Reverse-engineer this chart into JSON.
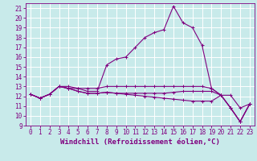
{
  "xlabel": "Windchill (Refroidissement éolien,°C)",
  "background_color": "#c8eaea",
  "grid_color": "#ffffff",
  "line_color": "#800080",
  "xlim": [
    -0.5,
    23.5
  ],
  "ylim": [
    9,
    21.5
  ],
  "xticks": [
    0,
    1,
    2,
    3,
    4,
    5,
    6,
    7,
    8,
    9,
    10,
    11,
    12,
    13,
    14,
    15,
    16,
    17,
    18,
    19,
    20,
    21,
    22,
    23
  ],
  "yticks": [
    9,
    10,
    11,
    12,
    13,
    14,
    15,
    16,
    17,
    18,
    19,
    20,
    21
  ],
  "series": [
    [
      12.2,
      11.8,
      12.2,
      13.0,
      12.8,
      12.8,
      12.5,
      12.5,
      15.2,
      15.8,
      16.0,
      17.0,
      18.0,
      18.5,
      18.8,
      21.2,
      19.5,
      19.0,
      17.2,
      12.8,
      12.1,
      10.8,
      9.4,
      11.2
    ],
    [
      12.2,
      11.8,
      12.2,
      13.0,
      13.0,
      12.8,
      12.8,
      12.8,
      13.0,
      13.0,
      13.0,
      13.0,
      13.0,
      13.0,
      13.0,
      13.0,
      13.0,
      13.0,
      13.0,
      12.8,
      12.1,
      12.1,
      10.8,
      11.2
    ],
    [
      12.2,
      11.8,
      12.2,
      13.0,
      12.8,
      12.5,
      12.3,
      12.3,
      12.4,
      12.3,
      12.3,
      12.3,
      12.3,
      12.3,
      12.3,
      12.4,
      12.5,
      12.5,
      12.5,
      12.5,
      12.1,
      10.8,
      9.4,
      11.2
    ],
    [
      12.2,
      11.8,
      12.2,
      13.0,
      12.8,
      12.5,
      12.3,
      12.3,
      12.4,
      12.3,
      12.2,
      12.1,
      12.0,
      11.9,
      11.8,
      11.7,
      11.6,
      11.5,
      11.5,
      11.5,
      12.1,
      10.8,
      9.4,
      11.2
    ]
  ],
  "marker": "+",
  "markersize": 3,
  "linewidth": 0.8,
  "tick_fontsize": 5.5,
  "xlabel_fontsize": 6.5
}
